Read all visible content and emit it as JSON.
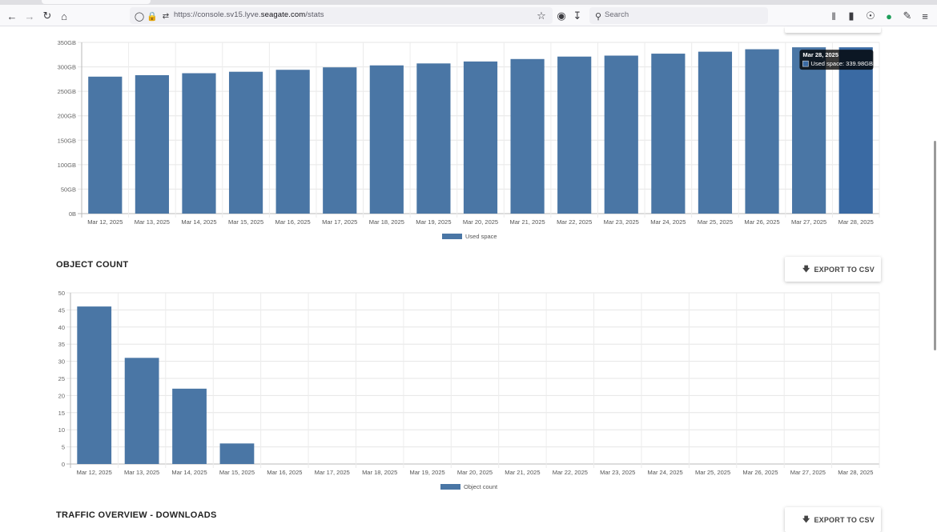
{
  "browser": {
    "url_prefix": "https://console.sv15.lyve.",
    "url_domain": "seagate.com",
    "url_suffix": "/stats",
    "search_placeholder": "Search"
  },
  "sections": {
    "object_count_title": "OBJECT COUNT",
    "traffic_title": "TRAFFIC OVERVIEW - DOWNLOADS",
    "export_label": "EXPORT TO CSV"
  },
  "chart_data": [
    {
      "type": "bar",
      "categories": [
        "Mar 12, 2025",
        "Mar 13, 2025",
        "Mar 14, 2025",
        "Mar 15, 2025",
        "Mar 16, 2025",
        "Mar 17, 2025",
        "Mar 18, 2025",
        "Mar 19, 2025",
        "Mar 20, 2025",
        "Mar 21, 2025",
        "Mar 22, 2025",
        "Mar 23, 2025",
        "Mar 24, 2025",
        "Mar 25, 2025",
        "Mar 26, 2025",
        "Mar 27, 2025",
        "Mar 28, 2025"
      ],
      "series": [
        {
          "name": "Used space",
          "values": [
            280,
            283,
            287,
            290,
            294,
            299,
            303,
            307,
            311,
            316,
            321,
            323,
            327,
            331,
            336,
            340,
            339.98
          ]
        }
      ],
      "unit": "GB",
      "yticks": [
        "0B",
        "50GB",
        "100GB",
        "150GB",
        "200GB",
        "250GB",
        "300GB",
        "350GB"
      ],
      "ylim": [
        0,
        350
      ],
      "grid": true,
      "legend": "bottom",
      "color": "#4a76a5",
      "highlight_color": "#3a6aa3",
      "tooltip": {
        "title": "Mar 28, 2025",
        "text": "Used space: 339.98GB"
      }
    },
    {
      "type": "bar",
      "categories": [
        "Mar 12, 2025",
        "Mar 13, 2025",
        "Mar 14, 2025",
        "Mar 15, 2025",
        "Mar 16, 2025",
        "Mar 17, 2025",
        "Mar 18, 2025",
        "Mar 19, 2025",
        "Mar 20, 2025",
        "Mar 21, 2025",
        "Mar 22, 2025",
        "Mar 23, 2025",
        "Mar 24, 2025",
        "Mar 25, 2025",
        "Mar 26, 2025",
        "Mar 27, 2025",
        "Mar 28, 2025"
      ],
      "series": [
        {
          "name": "Object count",
          "values": [
            46,
            31,
            22,
            6,
            0,
            0,
            0,
            0,
            0,
            0,
            0,
            0,
            0,
            0,
            0,
            0,
            0
          ]
        }
      ],
      "yticks": [
        "0",
        "5",
        "10",
        "15",
        "20",
        "25",
        "30",
        "35",
        "40",
        "45",
        "50"
      ],
      "ylim": [
        0,
        50
      ],
      "grid": true,
      "legend": "bottom",
      "color": "#4a76a5"
    }
  ]
}
